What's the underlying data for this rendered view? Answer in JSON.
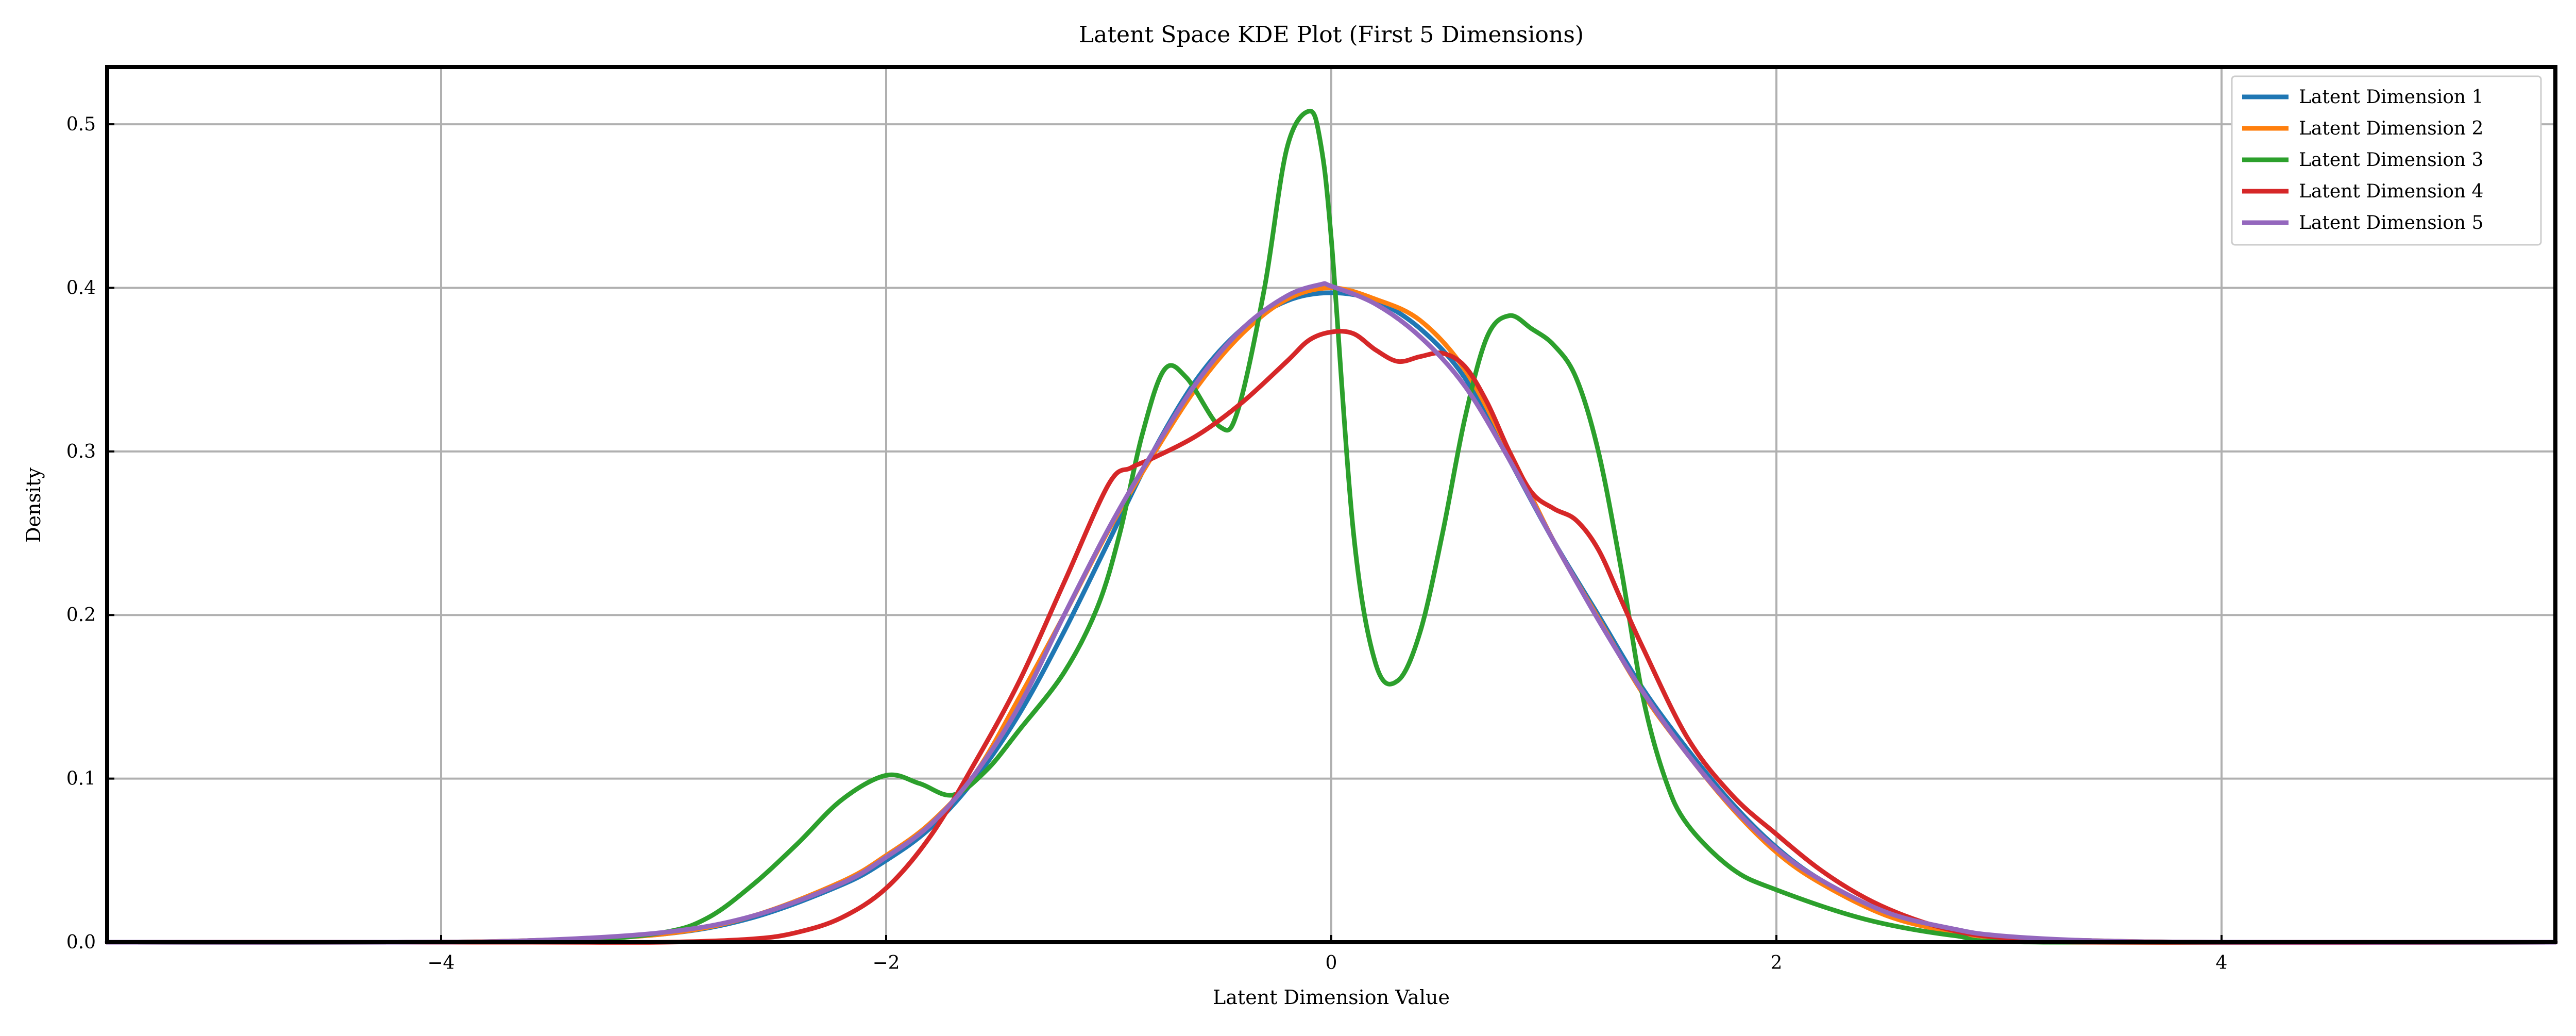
{
  "chart_data": {
    "type": "line",
    "title": "Latent Space KDE Plot (First 5 Dimensions)",
    "xlabel": "Latent Dimension Value",
    "ylabel": "Density",
    "xlim": [
      -5.5,
      5.5
    ],
    "ylim": [
      0,
      0.535
    ],
    "xticks": [
      -4,
      -2,
      0,
      2,
      4
    ],
    "xtick_labels": [
      "−4",
      "−2",
      "0",
      "2",
      "4"
    ],
    "yticks": [
      0,
      0.1,
      0.2,
      0.3,
      0.4,
      0.5
    ],
    "ytick_labels": [
      "0.0",
      "0.1",
      "0.2",
      "0.3",
      "0.4",
      "0.5"
    ],
    "grid": true,
    "legend_position": "top-right",
    "series": [
      {
        "name": "Latent Dimension 1",
        "color": "#1f77b4",
        "x": [
          -4.2,
          -3.6,
          -3.0,
          -2.6,
          -2.2,
          -2.0,
          -1.8,
          -1.6,
          -1.4,
          -1.2,
          -1.0,
          -0.8,
          -0.6,
          -0.4,
          -0.2,
          0.0,
          0.2,
          0.4,
          0.6,
          0.8,
          1.0,
          1.2,
          1.4,
          1.6,
          1.8,
          2.0,
          2.2,
          2.5,
          2.8,
          3.0,
          3.4,
          4.0
        ],
        "y": [
          0.0,
          0.001,
          0.005,
          0.015,
          0.035,
          0.05,
          0.07,
          0.1,
          0.14,
          0.19,
          0.245,
          0.3,
          0.345,
          0.375,
          0.392,
          0.397,
          0.392,
          0.375,
          0.345,
          0.295,
          0.245,
          0.2,
          0.155,
          0.118,
          0.085,
          0.058,
          0.038,
          0.017,
          0.007,
          0.003,
          0.001,
          0.0
        ]
      },
      {
        "name": "Latent Dimension 2",
        "color": "#ff7f0e",
        "x": [
          -4.2,
          -3.6,
          -3.0,
          -2.6,
          -2.2,
          -2.0,
          -1.8,
          -1.6,
          -1.4,
          -1.2,
          -1.0,
          -0.8,
          -0.6,
          -0.4,
          -0.2,
          0.0,
          0.2,
          0.4,
          0.6,
          0.8,
          1.0,
          1.2,
          1.4,
          1.6,
          1.8,
          2.0,
          2.2,
          2.5,
          2.8,
          3.0,
          3.4,
          4.0
        ],
        "y": [
          0.0,
          0.001,
          0.005,
          0.016,
          0.037,
          0.053,
          0.073,
          0.103,
          0.15,
          0.2,
          0.252,
          0.298,
          0.34,
          0.372,
          0.393,
          0.4,
          0.393,
          0.38,
          0.35,
          0.3,
          0.245,
          0.198,
          0.152,
          0.115,
          0.082,
          0.055,
          0.036,
          0.016,
          0.006,
          0.003,
          0.001,
          0.0
        ]
      },
      {
        "name": "Latent Dimension 3",
        "color": "#2ca02c",
        "x": [
          -4.0,
          -3.4,
          -3.0,
          -2.8,
          -2.6,
          -2.4,
          -2.2,
          -2.0,
          -1.85,
          -1.7,
          -1.55,
          -1.4,
          -1.2,
          -1.05,
          -0.95,
          -0.85,
          -0.75,
          -0.65,
          -0.5,
          -0.42,
          -0.3,
          -0.2,
          -0.1,
          -0.05,
          0.0,
          0.1,
          0.2,
          0.3,
          0.4,
          0.5,
          0.6,
          0.7,
          0.8,
          0.9,
          1.0,
          1.1,
          1.2,
          1.3,
          1.4,
          1.5,
          1.6,
          1.8,
          2.0,
          2.4,
          2.8,
          3.2
        ],
        "y": [
          0.0,
          0.001,
          0.006,
          0.015,
          0.035,
          0.06,
          0.087,
          0.102,
          0.097,
          0.09,
          0.105,
          0.13,
          0.165,
          0.205,
          0.25,
          0.31,
          0.35,
          0.345,
          0.315,
          0.325,
          0.4,
          0.485,
          0.508,
          0.49,
          0.43,
          0.25,
          0.17,
          0.16,
          0.19,
          0.25,
          0.32,
          0.37,
          0.383,
          0.375,
          0.365,
          0.345,
          0.3,
          0.23,
          0.15,
          0.1,
          0.072,
          0.045,
          0.032,
          0.014,
          0.004,
          0.0
        ]
      },
      {
        "name": "Latent Dimension 4",
        "color": "#d62728",
        "x": [
          -3.6,
          -3.0,
          -2.6,
          -2.4,
          -2.2,
          -2.0,
          -1.8,
          -1.6,
          -1.4,
          -1.2,
          -1.0,
          -0.9,
          -0.8,
          -0.6,
          -0.4,
          -0.2,
          -0.1,
          0.0,
          0.1,
          0.2,
          0.3,
          0.4,
          0.5,
          0.6,
          0.7,
          0.8,
          0.9,
          1.0,
          1.1,
          1.2,
          1.3,
          1.4,
          1.6,
          1.8,
          2.0,
          2.2,
          2.4,
          2.6,
          2.8,
          3.0,
          3.4
        ],
        "y": [
          0.0,
          0.0,
          0.002,
          0.006,
          0.015,
          0.033,
          0.065,
          0.11,
          0.16,
          0.22,
          0.28,
          0.29,
          0.296,
          0.31,
          0.33,
          0.355,
          0.368,
          0.373,
          0.372,
          0.362,
          0.355,
          0.358,
          0.36,
          0.352,
          0.33,
          0.3,
          0.275,
          0.265,
          0.258,
          0.24,
          0.21,
          0.18,
          0.125,
          0.09,
          0.066,
          0.044,
          0.027,
          0.015,
          0.007,
          0.003,
          0.0
        ]
      },
      {
        "name": "Latent Dimension 5",
        "color": "#9467bd",
        "x": [
          -4.2,
          -3.6,
          -3.0,
          -2.6,
          -2.2,
          -2.0,
          -1.8,
          -1.6,
          -1.4,
          -1.2,
          -1.0,
          -0.8,
          -0.6,
          -0.4,
          -0.2,
          -0.05,
          0.0,
          0.2,
          0.4,
          0.6,
          0.8,
          1.0,
          1.2,
          1.4,
          1.6,
          1.8,
          2.0,
          2.2,
          2.5,
          2.8,
          3.0,
          3.4,
          4.0
        ],
        "y": [
          0.0,
          0.001,
          0.006,
          0.016,
          0.036,
          0.052,
          0.072,
          0.103,
          0.145,
          0.2,
          0.253,
          0.3,
          0.343,
          0.375,
          0.395,
          0.402,
          0.401,
          0.39,
          0.37,
          0.34,
          0.295,
          0.245,
          0.197,
          0.153,
          0.115,
          0.083,
          0.057,
          0.038,
          0.018,
          0.008,
          0.004,
          0.001,
          0.0
        ]
      }
    ]
  }
}
